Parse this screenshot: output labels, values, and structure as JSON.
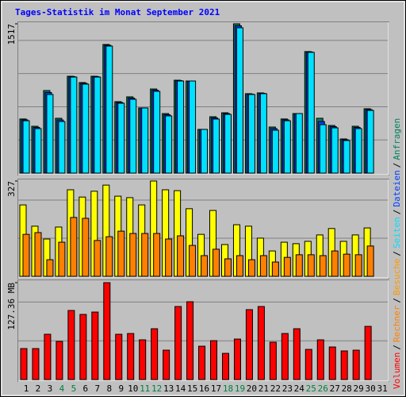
{
  "legend_separator": "/",
  "chart_data": [
    {
      "type": "bar",
      "title": "Tages-Statistik im Monat September 2021",
      "categories": [
        "1",
        "2",
        "3",
        "4",
        "5",
        "6",
        "7",
        "8",
        "9",
        "10",
        "11",
        "12",
        "13",
        "14",
        "15",
        "16",
        "17",
        "18",
        "19",
        "20",
        "21",
        "22",
        "23",
        "24",
        "25",
        "26",
        "27",
        "28",
        "29",
        "30",
        "31"
      ],
      "category_colors": [
        "#000000",
        "#000000",
        "#000000",
        "#008040",
        "#008040",
        "#000000",
        "#000000",
        "#000000",
        "#000000",
        "#000000",
        "#008040",
        "#008040",
        "#000000",
        "#000000",
        "#000000",
        "#000000",
        "#000000",
        "#008040",
        "#008040",
        "#000000",
        "#000000",
        "#000000",
        "#000000",
        "#000000",
        "#008040",
        "#008040",
        "#000000",
        "#000000",
        "#000000",
        "#000000",
        "#000000"
      ],
      "ylim": [
        0,
        1517
      ],
      "yticks": [
        1517
      ],
      "series": [
        {
          "name": "Anfragen",
          "color": "#00805c",
          "values": [
            550,
            476,
            839,
            557,
            984,
            920,
            984,
            1307,
            726,
            775,
            662,
            855,
            605,
            944,
            936,
            444,
            573,
            613,
            1517,
            807,
            815,
            468,
            550,
            605,
            1235,
            557,
            484,
            347,
            476,
            654,
            null
          ]
        },
        {
          "name": "Dateien",
          "color": "#0040ff",
          "values": [
            541,
            464,
            819,
            540,
            980,
            912,
            980,
            1299,
            718,
            762,
            662,
            843,
            593,
            940,
            936,
            444,
            561,
            605,
            1497,
            803,
            811,
            452,
            541,
            605,
            1231,
            524,
            472,
            339,
            464,
            645,
            null
          ]
        },
        {
          "name": "Seiten",
          "color": "#00e0ff",
          "values": [
            532,
            452,
            799,
            524,
            976,
            904,
            976,
            1291,
            710,
            750,
            662,
            831,
            581,
            936,
            936,
            444,
            549,
            597,
            1477,
            799,
            807,
            436,
            532,
            605,
            1227,
            492,
            460,
            331,
            452,
            637,
            null
          ]
        }
      ]
    },
    {
      "type": "bar",
      "categories": [
        "1",
        "2",
        "3",
        "4",
        "5",
        "6",
        "7",
        "8",
        "9",
        "10",
        "11",
        "12",
        "13",
        "14",
        "15",
        "16",
        "17",
        "18",
        "19",
        "20",
        "21",
        "22",
        "23",
        "24",
        "25",
        "26",
        "27",
        "28",
        "29",
        "30",
        "31"
      ],
      "ylim": [
        0,
        327
      ],
      "yticks": [
        327
      ],
      "series": [
        {
          "name": "Besuche",
          "color": "#ffff00",
          "label_color": "#ff9900",
          "values": [
            245,
            172,
            128,
            169,
            297,
            272,
            292,
            313,
            275,
            270,
            245,
            327,
            297,
            294,
            232,
            144,
            226,
            109,
            177,
            172,
            131,
            87,
            117,
            112,
            120,
            142,
            164,
            120,
            142,
            166,
            null
          ]
        },
        {
          "name": "Rechner",
          "color": "#ff8000",
          "values": [
            144,
            150,
            57,
            117,
            202,
            199,
            123,
            136,
            155,
            147,
            147,
            147,
            128,
            139,
            106,
            71,
            93,
            60,
            71,
            57,
            71,
            49,
            65,
            74,
            74,
            71,
            87,
            76,
            74,
            104,
            null
          ]
        }
      ]
    },
    {
      "type": "bar",
      "categories": [
        "1",
        "2",
        "3",
        "4",
        "5",
        "6",
        "7",
        "8",
        "9",
        "10",
        "11",
        "12",
        "13",
        "14",
        "15",
        "16",
        "17",
        "18",
        "19",
        "20",
        "21",
        "22",
        "23",
        "24",
        "25",
        "26",
        "27",
        "28",
        "29",
        "30",
        "31"
      ],
      "ylim": [
        0,
        127.36
      ],
      "yticks": [
        {
          "value": 127.36,
          "label": "127.36 MB"
        }
      ],
      "series": [
        {
          "name": "Volumen",
          "color": "#ff0000",
          "values": [
            40.7,
            40.7,
            59.5,
            50.1,
            90.8,
            85.6,
            88.7,
            127.36,
            59.5,
            60.5,
            52.2,
            66.8,
            38.6,
            96.0,
            102.3,
            43.8,
            51.1,
            34.4,
            53.2,
            91.9,
            96.0,
            49.1,
            60.5,
            66.8,
            39.6,
            52.2,
            42.8,
            37.6,
            38.6,
            69.9,
            null
          ]
        }
      ]
    }
  ]
}
